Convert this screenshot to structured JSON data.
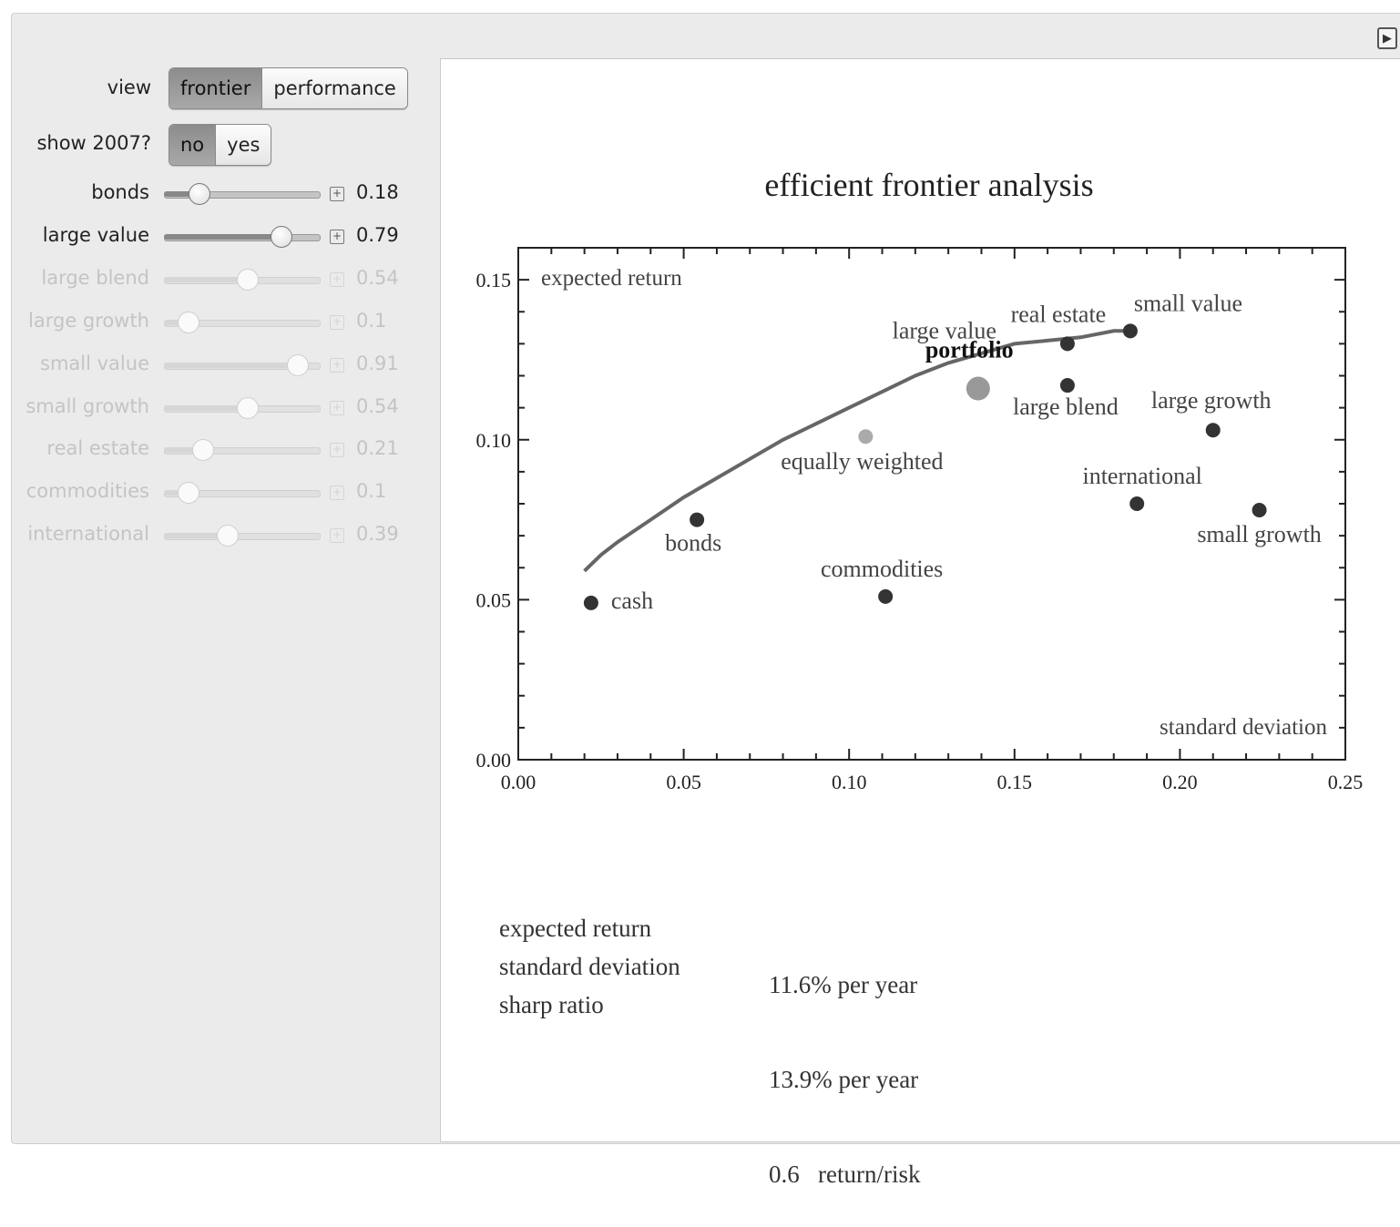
{
  "view": {
    "label": "view",
    "options": [
      "frontier",
      "performance"
    ],
    "selected": "frontier"
  },
  "show2007": {
    "label": "show 2007?",
    "options": [
      "no",
      "yes"
    ],
    "selected": "no"
  },
  "sliders": [
    {
      "label": "bonds",
      "value": "0.18",
      "position": 0.18,
      "enabled": true
    },
    {
      "label": "large value",
      "value": "0.79",
      "position": 0.79,
      "enabled": true
    },
    {
      "label": "large blend",
      "value": "0.54",
      "position": 0.54,
      "enabled": false
    },
    {
      "label": "large growth",
      "value": "0.1",
      "position": 0.1,
      "enabled": false
    },
    {
      "label": "small value",
      "value": "0.91",
      "position": 0.91,
      "enabled": false
    },
    {
      "label": "small growth",
      "value": "0.54",
      "position": 0.54,
      "enabled": false
    },
    {
      "label": "real estate",
      "value": "0.21",
      "position": 0.21,
      "enabled": false
    },
    {
      "label": "commodities",
      "value": "0.1",
      "position": 0.1,
      "enabled": false
    },
    {
      "label": "international",
      "value": "0.39",
      "position": 0.39,
      "enabled": false
    }
  ],
  "chart_data": {
    "type": "scatter",
    "title": "efficient frontier analysis",
    "xlabel": "standard deviation",
    "ylabel": "expected return",
    "xlim": [
      0,
      0.25
    ],
    "ylim": [
      0,
      0.16
    ],
    "x_ticks": [
      "0.00",
      "0.05",
      "0.10",
      "0.15",
      "0.20",
      "0.25"
    ],
    "y_ticks": [
      "0.00",
      "0.05",
      "0.10",
      "0.15"
    ],
    "assets": [
      {
        "name": "cash",
        "x": 0.022,
        "y": 0.049
      },
      {
        "name": "bonds",
        "x": 0.054,
        "y": 0.075
      },
      {
        "name": "commodities",
        "x": 0.111,
        "y": 0.051
      },
      {
        "name": "large value",
        "x": 0.166,
        "y": 0.13
      },
      {
        "name": "real estate",
        "x": 0.166,
        "y": 0.13
      },
      {
        "name": "small value",
        "x": 0.185,
        "y": 0.134
      },
      {
        "name": "large blend",
        "x": 0.166,
        "y": 0.117
      },
      {
        "name": "large growth",
        "x": 0.21,
        "y": 0.103
      },
      {
        "name": "international",
        "x": 0.187,
        "y": 0.08
      },
      {
        "name": "small growth",
        "x": 0.224,
        "y": 0.078
      }
    ],
    "equally_weighted": {
      "name": "equally weighted",
      "x": 0.105,
      "y": 0.101
    },
    "portfolio": {
      "name": "portfolio",
      "x": 0.139,
      "y": 0.116
    },
    "frontier": {
      "x": [
        0.02,
        0.025,
        0.03,
        0.04,
        0.05,
        0.06,
        0.07,
        0.08,
        0.09,
        0.1,
        0.11,
        0.12,
        0.13,
        0.14,
        0.15,
        0.16,
        0.17,
        0.18,
        0.185
      ],
      "y": [
        0.059,
        0.064,
        0.068,
        0.075,
        0.082,
        0.088,
        0.094,
        0.1,
        0.105,
        0.11,
        0.115,
        0.12,
        0.124,
        0.127,
        0.13,
        0.131,
        0.132,
        0.134,
        0.134
      ]
    }
  },
  "stats": [
    {
      "label": "expected return",
      "value": "11.6% per year"
    },
    {
      "label": "standard deviation",
      "value": "13.9% per year"
    },
    {
      "label": "sharp ratio",
      "value": "0.6   return/risk"
    }
  ]
}
